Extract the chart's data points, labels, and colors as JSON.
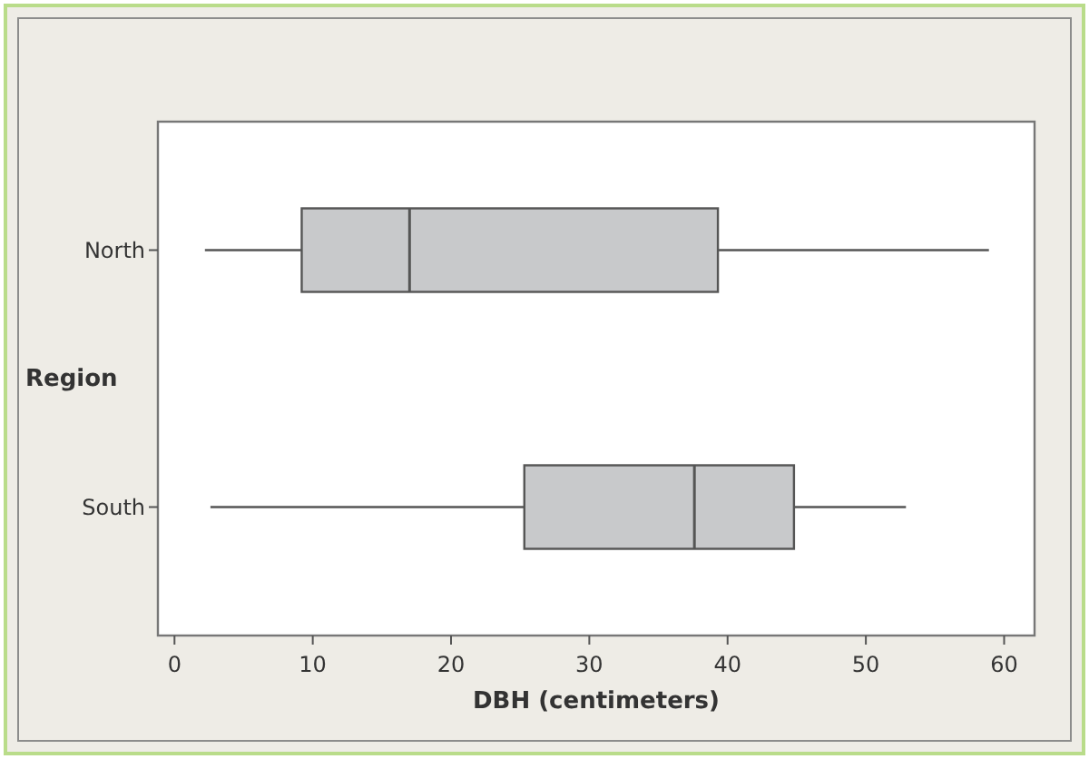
{
  "chart_data": {
    "type": "box",
    "orientation": "horizontal",
    "ylabel": "Region",
    "xlabel": "DBH (centimeters)",
    "categories": [
      "North",
      "South"
    ],
    "boxes": [
      {
        "low": 2.2,
        "q1": 9.2,
        "median": 17.0,
        "q3": 39.3,
        "high": 58.9
      },
      {
        "low": 2.6,
        "q1": 25.3,
        "median": 37.6,
        "q3": 44.8,
        "high": 52.9
      }
    ],
    "color": "#c8c9cb",
    "xlim": [
      -1.2,
      62.2
    ],
    "xticks": [
      0,
      10,
      20,
      30,
      40,
      50,
      60
    ],
    "grid": false
  }
}
